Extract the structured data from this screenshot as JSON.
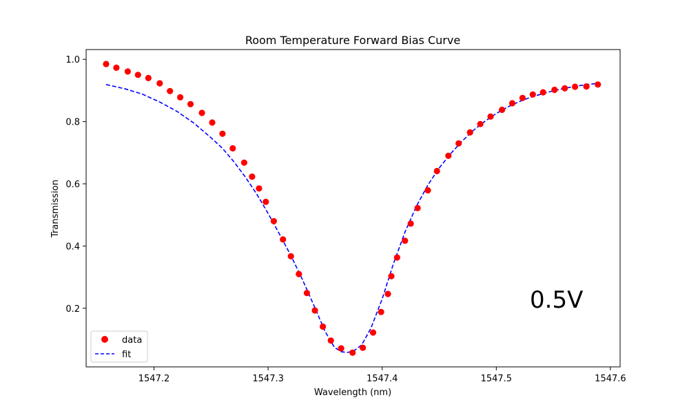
{
  "chart_data": {
    "type": "scatter",
    "title": "Room Temperature Forward Bias Curve",
    "xlabel": "Wavelength (nm)",
    "ylabel": "Transmission",
    "xlim": [
      1547.1405,
      1547.6085
    ],
    "ylim": [
      0.0115,
      1.0315
    ],
    "xticks": [
      1547.2,
      1547.3,
      1547.4,
      1547.5,
      1547.6
    ],
    "xtick_labels": [
      "1547.2",
      "1547.3",
      "1547.4",
      "1547.5",
      "1547.6"
    ],
    "yticks": [
      0.2,
      0.4,
      0.6,
      0.8,
      1.0
    ],
    "ytick_labels": [
      "0.2",
      "0.4",
      "0.6",
      "0.8",
      "1.0"
    ],
    "annotation": {
      "text": "0.5V",
      "color": "#ff0000"
    },
    "legend": {
      "placement": "lower left",
      "entries": [
        "data",
        "fit"
      ]
    },
    "grid": false,
    "series": [
      {
        "name": "data",
        "kind": "scatter",
        "color": "#ff0000",
        "points": [
          [
            1547.158,
            0.985
          ],
          [
            1547.167,
            0.973
          ],
          [
            1547.177,
            0.961
          ],
          [
            1547.186,
            0.95
          ],
          [
            1547.195,
            0.94
          ],
          [
            1547.205,
            0.923
          ],
          [
            1547.214,
            0.898
          ],
          [
            1547.223,
            0.878
          ],
          [
            1547.232,
            0.856
          ],
          [
            1547.242,
            0.828
          ],
          [
            1547.251,
            0.797
          ],
          [
            1547.26,
            0.761
          ],
          [
            1547.269,
            0.714
          ],
          [
            1547.279,
            0.668
          ],
          [
            1547.286,
            0.623
          ],
          [
            1547.292,
            0.585
          ],
          [
            1547.298,
            0.542
          ],
          [
            1547.305,
            0.48
          ],
          [
            1547.313,
            0.421
          ],
          [
            1547.32,
            0.367
          ],
          [
            1547.327,
            0.31
          ],
          [
            1547.334,
            0.249
          ],
          [
            1547.341,
            0.193
          ],
          [
            1547.348,
            0.141
          ],
          [
            1547.355,
            0.096
          ],
          [
            1547.364,
            0.071
          ],
          [
            1547.374,
            0.057
          ],
          [
            1547.383,
            0.073
          ],
          [
            1547.392,
            0.122
          ],
          [
            1547.399,
            0.188
          ],
          [
            1547.405,
            0.246
          ],
          [
            1547.408,
            0.303
          ],
          [
            1547.413,
            0.363
          ],
          [
            1547.42,
            0.417
          ],
          [
            1547.425,
            0.472
          ],
          [
            1547.431,
            0.522
          ],
          [
            1547.44,
            0.579
          ],
          [
            1547.448,
            0.641
          ],
          [
            1547.458,
            0.69
          ],
          [
            1547.467,
            0.73
          ],
          [
            1547.477,
            0.765
          ],
          [
            1547.486,
            0.792
          ],
          [
            1547.495,
            0.816
          ],
          [
            1547.505,
            0.838
          ],
          [
            1547.514,
            0.859
          ],
          [
            1547.523,
            0.876
          ],
          [
            1547.532,
            0.887
          ],
          [
            1547.541,
            0.894
          ],
          [
            1547.551,
            0.902
          ],
          [
            1547.56,
            0.907
          ],
          [
            1547.569,
            0.912
          ],
          [
            1547.579,
            0.913
          ],
          [
            1547.589,
            0.919
          ]
        ]
      },
      {
        "name": "fit",
        "kind": "line",
        "style": "dashed",
        "color": "#0000ff",
        "points": [
          [
            1547.158,
            0.919
          ],
          [
            1547.175,
            0.905
          ],
          [
            1547.19,
            0.888
          ],
          [
            1547.205,
            0.863
          ],
          [
            1547.22,
            0.833
          ],
          [
            1547.235,
            0.795
          ],
          [
            1547.25,
            0.748
          ],
          [
            1547.26,
            0.714
          ],
          [
            1547.27,
            0.671
          ],
          [
            1547.28,
            0.622
          ],
          [
            1547.29,
            0.567
          ],
          [
            1547.3,
            0.505
          ],
          [
            1547.31,
            0.438
          ],
          [
            1547.32,
            0.369
          ],
          [
            1547.33,
            0.293
          ],
          [
            1547.34,
            0.21
          ],
          [
            1547.35,
            0.125
          ],
          [
            1547.358,
            0.075
          ],
          [
            1547.364,
            0.06
          ],
          [
            1547.37,
            0.058
          ],
          [
            1547.376,
            0.065
          ],
          [
            1547.382,
            0.082
          ],
          [
            1547.39,
            0.135
          ],
          [
            1547.4,
            0.23
          ],
          [
            1547.41,
            0.345
          ],
          [
            1547.42,
            0.445
          ],
          [
            1547.43,
            0.528
          ],
          [
            1547.44,
            0.596
          ],
          [
            1547.45,
            0.651
          ],
          [
            1547.46,
            0.697
          ],
          [
            1547.47,
            0.737
          ],
          [
            1547.48,
            0.772
          ],
          [
            1547.49,
            0.801
          ],
          [
            1547.5,
            0.826
          ],
          [
            1547.51,
            0.847
          ],
          [
            1547.52,
            0.864
          ],
          [
            1547.53,
            0.878
          ],
          [
            1547.54,
            0.889
          ],
          [
            1547.55,
            0.899
          ],
          [
            1547.56,
            0.907
          ],
          [
            1547.57,
            0.914
          ],
          [
            1547.58,
            0.919
          ],
          [
            1547.589,
            0.923
          ]
        ]
      }
    ]
  }
}
